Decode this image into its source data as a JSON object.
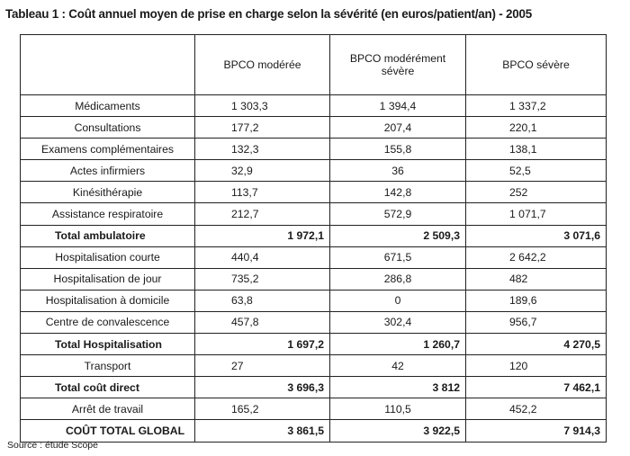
{
  "title": "Tableau 1 : Coût annuel moyen de prise en charge selon la sévérité (en euros/patient/an) - 2005",
  "columns": [
    "BPCO modérée",
    "BPCO modérément sévère",
    "BPCO sévère"
  ],
  "rows": [
    {
      "label": "Médicaments",
      "values": [
        "1 303,3",
        "1 394,4",
        "1 337,2"
      ],
      "total": false
    },
    {
      "label": "Consultations",
      "values": [
        "177,2",
        "207,4",
        "220,1"
      ],
      "total": false
    },
    {
      "label": "Examens complémentaires",
      "values": [
        "132,3",
        "155,8",
        "138,1"
      ],
      "total": false
    },
    {
      "label": "Actes infirmiers",
      "values": [
        "32,9",
        "36",
        "52,5"
      ],
      "total": false
    },
    {
      "label": "Kinésithérapie",
      "values": [
        "113,7",
        "142,8",
        "252"
      ],
      "total": false
    },
    {
      "label": "Assistance respiratoire",
      "values": [
        "212,7",
        "572,9",
        "1 071,7"
      ],
      "total": false
    },
    {
      "label": "Total ambulatoire",
      "values": [
        "1 972,1",
        "2 509,3",
        "3 071,6"
      ],
      "total": true
    },
    {
      "label": "Hospitalisation courte",
      "values": [
        "440,4",
        "671,5",
        "2 642,2"
      ],
      "total": false
    },
    {
      "label": "Hospitalisation de jour",
      "values": [
        "735,2",
        "286,8",
        "482"
      ],
      "total": false
    },
    {
      "label": "Hospitalisation à domicile",
      "values": [
        "63,8",
        "0",
        "189,6"
      ],
      "total": false
    },
    {
      "label": "Centre de convalescence",
      "values": [
        "457,8",
        "302,4",
        "956,7"
      ],
      "total": false
    },
    {
      "label": "Total Hospitalisation",
      "values": [
        "1 697,2",
        "1 260,7",
        "4 270,5"
      ],
      "total": true
    },
    {
      "label": "Transport",
      "values": [
        "27",
        "42",
        "120"
      ],
      "total": false
    },
    {
      "label": "Total coût direct",
      "values": [
        "3 696,3",
        "3 812",
        "7 462,1"
      ],
      "total": true
    },
    {
      "label": "Arrêt de travail",
      "values": [
        "165,2",
        "110,5",
        "452,2"
      ],
      "total": false
    },
    {
      "label": "COÛT TOTAL GLOBAL",
      "values": [
        "3 861,5",
        "3 922,5",
        "7 914,3"
      ],
      "total": true
    }
  ],
  "source": "Source : étude Scope"
}
